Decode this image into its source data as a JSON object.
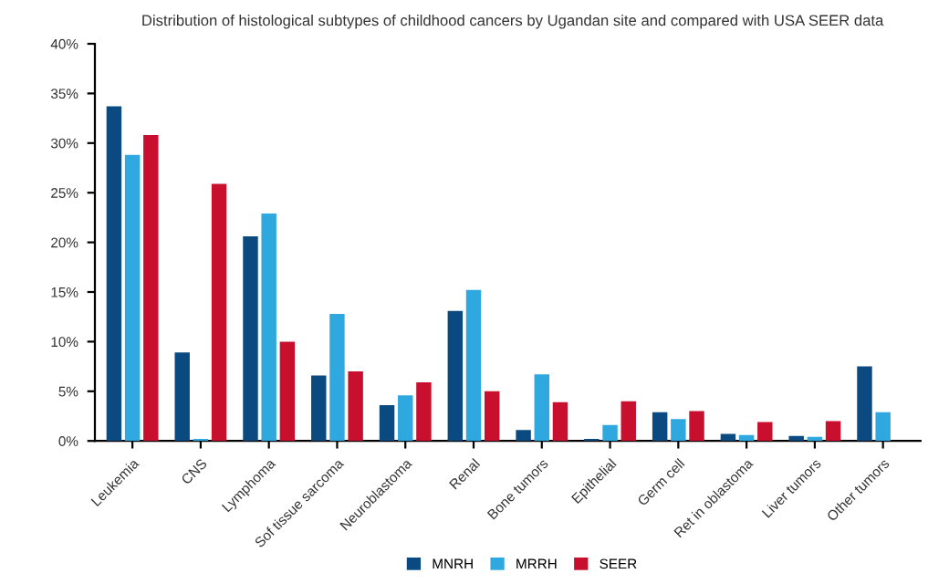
{
  "chart_data": {
    "type": "bar",
    "title": "Distribution of histological subtypes of childhood cancers by Ugandan site and compared with USA SEER data",
    "categories": [
      "Leukemia",
      "CNS",
      "Lymphoma",
      "Sof tissue sarcoma",
      "Neuroblastoma",
      "Renal",
      "Bone tumors",
      "Epithelial",
      "Germ cell",
      "Ret in oblastoma",
      "Liver tumors",
      "Other tumors"
    ],
    "series": [
      {
        "name": "MNRH",
        "color": "#0b4a80",
        "values": [
          33.7,
          8.9,
          20.6,
          6.6,
          3.6,
          13.1,
          1.1,
          0.2,
          2.9,
          0.7,
          0.5,
          7.5
        ]
      },
      {
        "name": "MRRH",
        "color": "#2fa8e0",
        "values": [
          28.8,
          0.2,
          22.9,
          12.8,
          4.6,
          15.2,
          6.7,
          1.6,
          2.2,
          0.6,
          0.4,
          2.9
        ]
      },
      {
        "name": "SEER",
        "color": "#c8102e",
        "values": [
          30.8,
          25.9,
          10.0,
          7.0,
          5.9,
          5.0,
          3.9,
          4.0,
          3.0,
          1.9,
          2.0,
          null
        ]
      }
    ],
    "ylim": [
      0,
      40
    ],
    "yticks": [
      {
        "value": 0,
        "label": "0%"
      },
      {
        "value": 5,
        "label": "5%"
      },
      {
        "value": 10,
        "label": "10%"
      },
      {
        "value": 15,
        "label": "15%"
      },
      {
        "value": 20,
        "label": "20%"
      },
      {
        "value": 25,
        "label": "25%"
      },
      {
        "value": 30,
        "label": "30%"
      },
      {
        "value": 35,
        "label": "35%"
      },
      {
        "value": 40,
        "label": "40%"
      }
    ],
    "grid": false,
    "legend": "bottom"
  }
}
